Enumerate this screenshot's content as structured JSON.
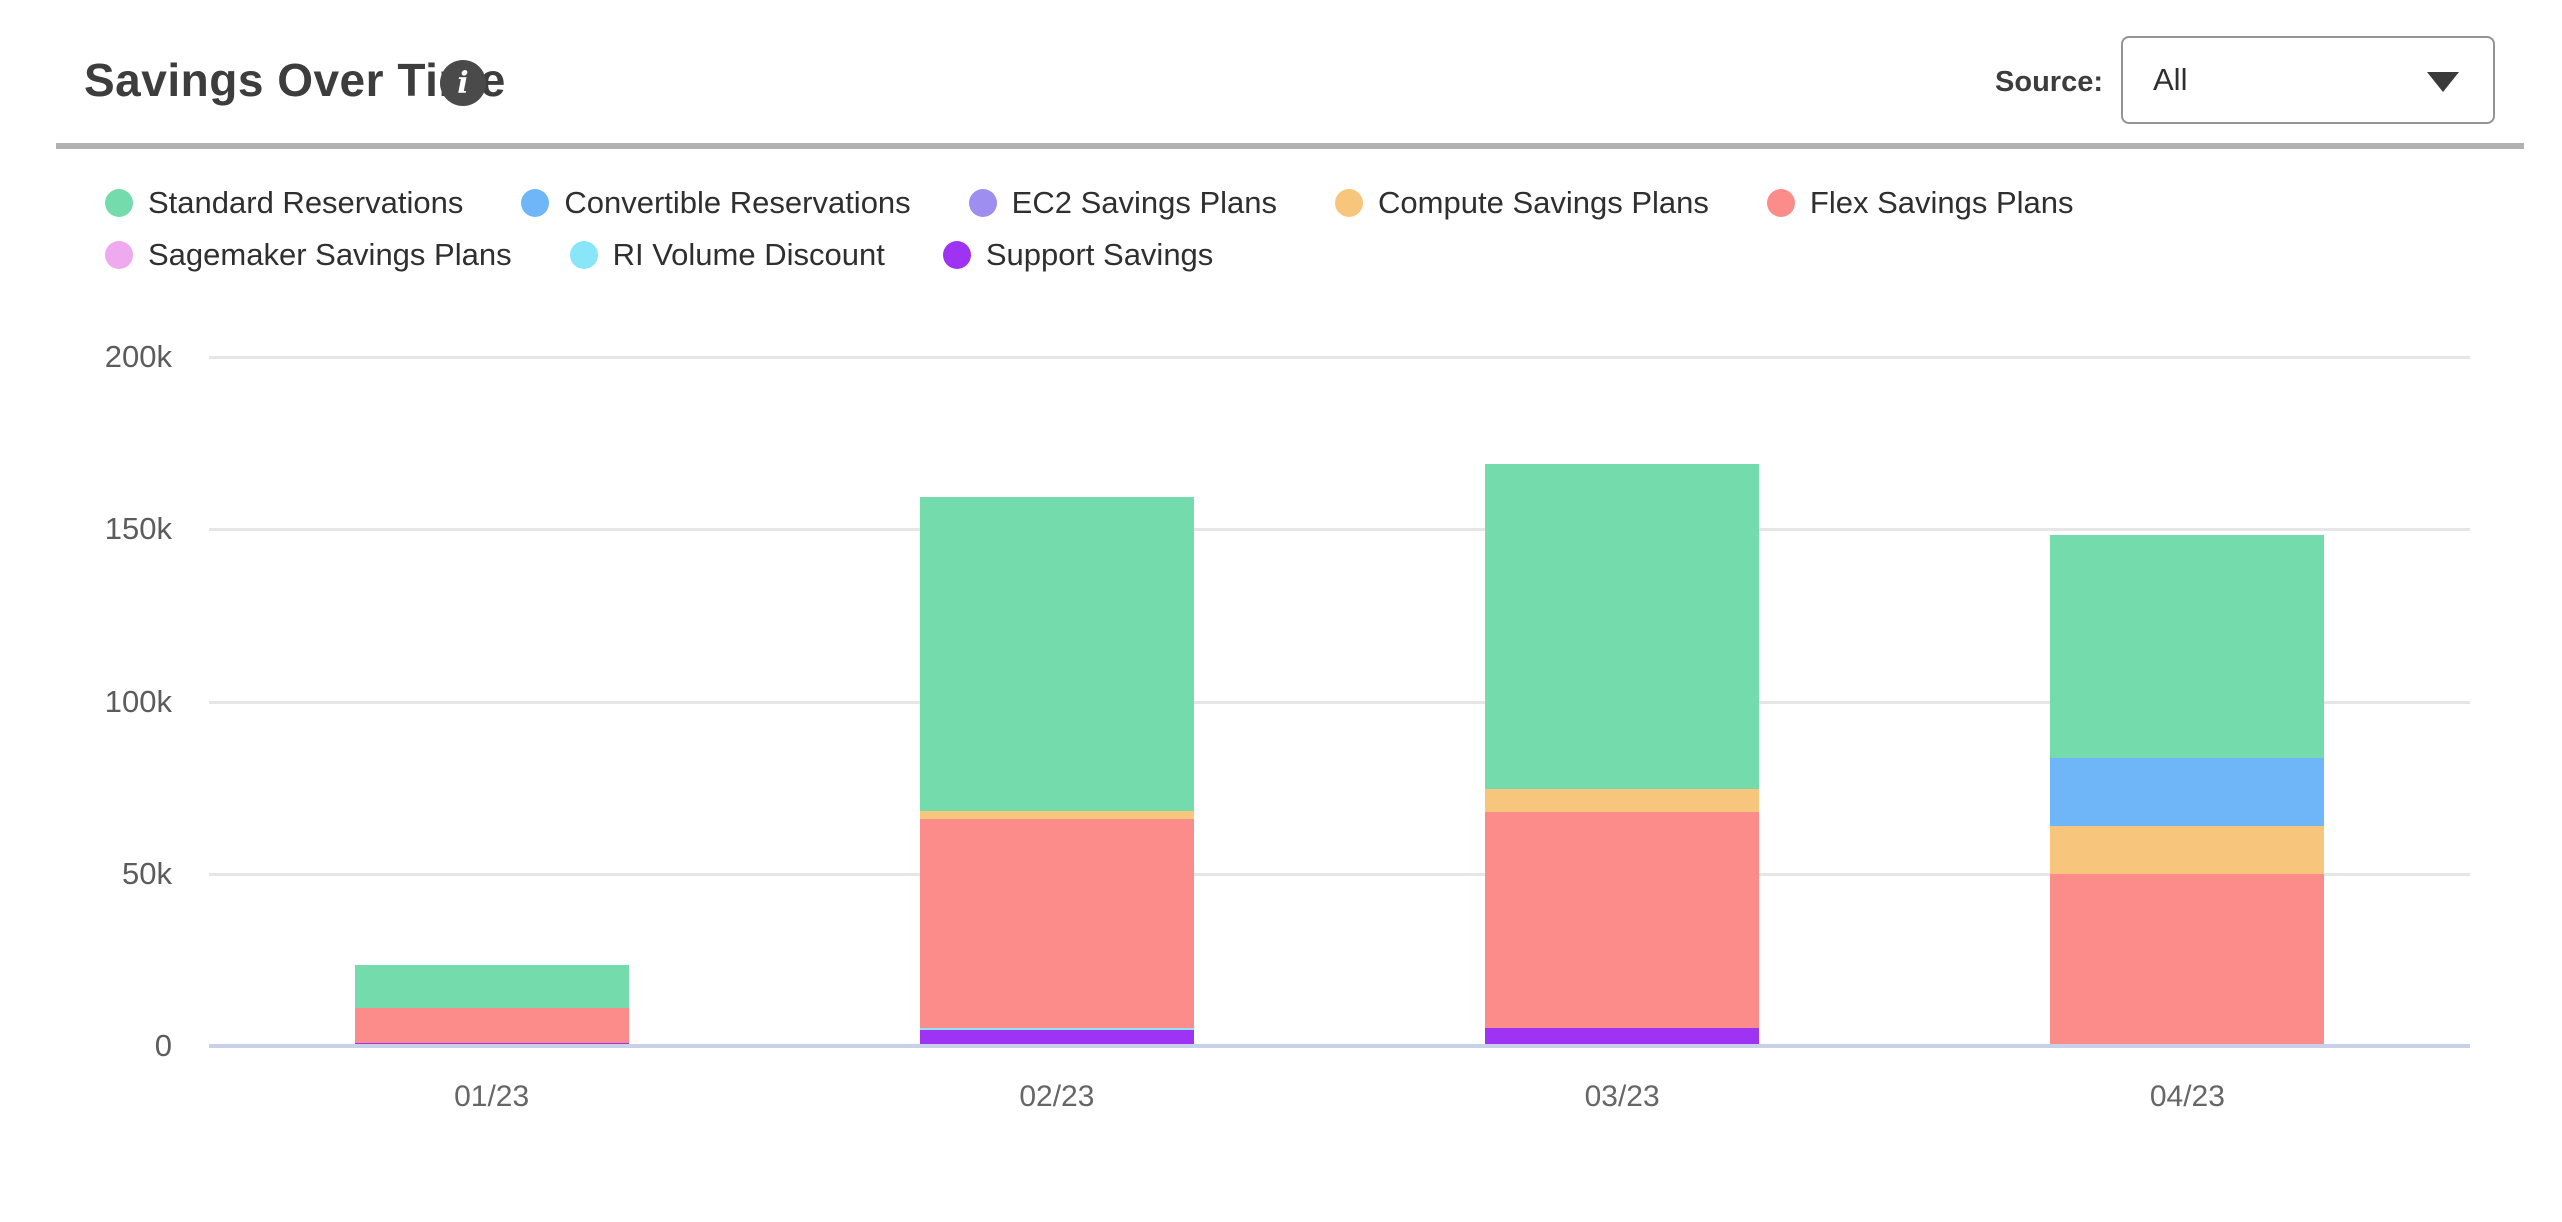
{
  "header": {
    "title": "Savings Over Time",
    "info_glyph": "i",
    "source_label": "Source:",
    "source_value": "All"
  },
  "chart_data": {
    "type": "bar",
    "stacked": true,
    "title": "Savings Over Time",
    "categories": [
      "01/23",
      "02/23",
      "03/23",
      "04/23"
    ],
    "series": [
      {
        "name": "Standard Reservations",
        "color": "#74dbad",
        "values": [
          12500,
          91100,
          94200,
          64700
        ]
      },
      {
        "name": "Convertible Reservations",
        "color": "#6fb6f8",
        "values": [
          0,
          0,
          0,
          19800
        ]
      },
      {
        "name": "EC2 Savings Plans",
        "color": "#9d8ef0",
        "values": [
          0,
          0,
          0,
          0
        ]
      },
      {
        "name": "Compute Savings Plans",
        "color": "#f8c57c",
        "values": [
          0,
          2200,
          6600,
          13800
        ]
      },
      {
        "name": "Flex Savings Plans",
        "color": "#fb8c8a",
        "values": [
          10000,
          60700,
          62700,
          50000
        ]
      },
      {
        "name": "Sagemaker Savings Plans",
        "color": "#efa9ee",
        "values": [
          0,
          0,
          0,
          0
        ]
      },
      {
        "name": "RI Volume Discount",
        "color": "#89e5f8",
        "values": [
          0,
          800,
          0,
          0
        ]
      },
      {
        "name": "Support Savings",
        "color": "#9f33f3",
        "values": [
          1000,
          4500,
          5300,
          0
        ]
      }
    ],
    "stack_order_bottom_to_top": [
      "Support Savings",
      "RI Volume Discount",
      "Sagemaker Savings Plans",
      "Flex Savings Plans",
      "Compute Savings Plans",
      "EC2 Savings Plans",
      "Convertible Reservations",
      "Standard Reservations"
    ],
    "y_axis": {
      "min": 0,
      "max": 200000,
      "ticks": [
        {
          "value": 0,
          "label": "0"
        },
        {
          "value": 50000,
          "label": "50k"
        },
        {
          "value": 100000,
          "label": "100k"
        },
        {
          "value": 150000,
          "label": "150k"
        },
        {
          "value": 200000,
          "label": "200k"
        }
      ]
    },
    "legend_position": "top",
    "grid": "horizontal"
  }
}
